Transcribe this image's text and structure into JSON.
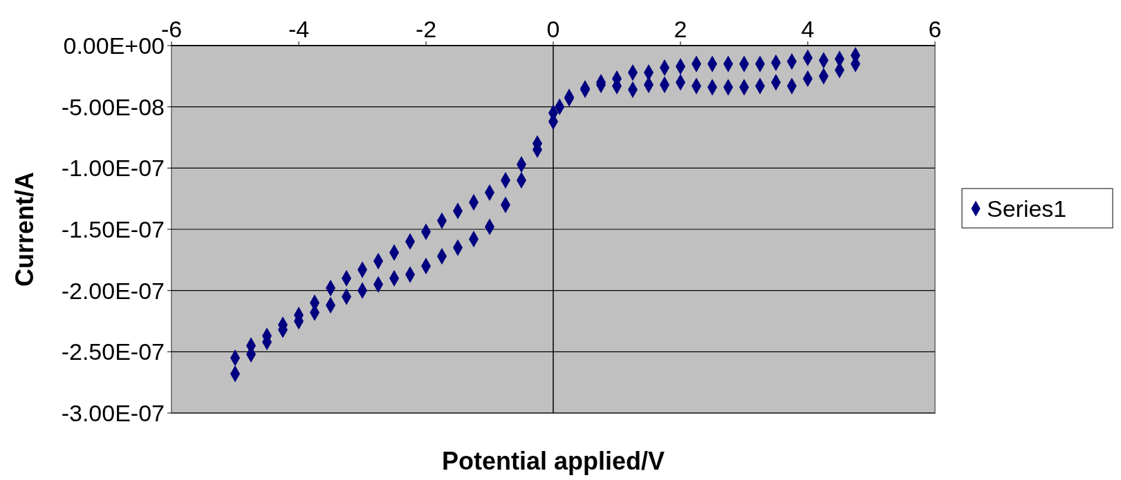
{
  "chart_data": {
    "type": "scatter",
    "xlabel": "Potential applied/V",
    "ylabel": "Current/A",
    "xlim": [
      -6,
      6
    ],
    "xticks": [
      -6,
      -4,
      -2,
      0,
      2,
      4,
      6
    ],
    "ylim": [
      -3e-07,
      0
    ],
    "yticks": [
      {
        "value": 0,
        "label": "0.00E+00"
      },
      {
        "value": -5e-08,
        "label": "-5.00E-08"
      },
      {
        "value": -1e-07,
        "label": "-1.00E-07"
      },
      {
        "value": -1.5e-07,
        "label": "-1.50E-07"
      },
      {
        "value": -2e-07,
        "label": "-2.00E-07"
      },
      {
        "value": -2.5e-07,
        "label": "-2.50E-07"
      },
      {
        "value": -3e-07,
        "label": "-3.00E-07"
      }
    ],
    "grid": "y",
    "legend": "right",
    "marker": "diamond",
    "series": [
      {
        "name": "Series1",
        "color": "#000080",
        "x": [
          -5,
          -4.75,
          -4.5,
          -4.25,
          -4,
          -3.75,
          -3.5,
          -3.25,
          -3,
          -2.75,
          -2.5,
          -2.25,
          -2,
          -1.75,
          -1.5,
          -1.25,
          -1,
          -0.75,
          -0.5,
          -0.25,
          0,
          0.1,
          0.25,
          0.5,
          0.75,
          1,
          1.25,
          1.5,
          1.75,
          2,
          2.25,
          2.5,
          2.75,
          3,
          3.25,
          3.5,
          3.75,
          4,
          4.25,
          4.5,
          4.75,
          4.75,
          4.5,
          4.25,
          4,
          3.75,
          3.5,
          3.25,
          3,
          2.75,
          2.5,
          2.25,
          2,
          1.75,
          1.5,
          1.25,
          1,
          0.75,
          0.5,
          0.25,
          0,
          -0.25,
          -0.5,
          -0.75,
          -1,
          -1.25,
          -1.5,
          -1.75,
          -2,
          -2.25,
          -2.5,
          -2.75,
          -3,
          -3.25,
          -3.5,
          -3.75,
          -4,
          -4.25,
          -4.5,
          -4.75,
          -5
        ],
        "values": [
          -2.55e-07,
          -2.45e-07,
          -2.37e-07,
          -2.28e-07,
          -2.2e-07,
          -2.1e-07,
          -1.98e-07,
          -1.9e-07,
          -1.83e-07,
          -1.76e-07,
          -1.69e-07,
          -1.6e-07,
          -1.52e-07,
          -1.43e-07,
          -1.35e-07,
          -1.28e-07,
          -1.2e-07,
          -1.1e-07,
          -9.7e-08,
          -8e-08,
          -6.2e-08,
          -5e-08,
          -4.3e-08,
          -3.5e-08,
          -3e-08,
          -2.7e-08,
          -2.2e-08,
          -2.2e-08,
          -1.8e-08,
          -1.7e-08,
          -1.5e-08,
          -1.5e-08,
          -1.5e-08,
          -1.5e-08,
          -1.5e-08,
          -1.4e-08,
          -1.3e-08,
          -1e-08,
          -1.2e-08,
          -1.1e-08,
          -8e-09,
          -1.5e-08,
          -2e-08,
          -2.5e-08,
          -2.7e-08,
          -3.3e-08,
          -3e-08,
          -3.3e-08,
          -3.4e-08,
          -3.4e-08,
          -3.4e-08,
          -3.3e-08,
          -3e-08,
          -3.2e-08,
          -3.2e-08,
          -3.6e-08,
          -3.3e-08,
          -3.2e-08,
          -3.6e-08,
          -4.2e-08,
          -5.5e-08,
          -8.5e-08,
          -1.1e-07,
          -1.3e-07,
          -1.48e-07,
          -1.58e-07,
          -1.65e-07,
          -1.72e-07,
          -1.8e-07,
          -1.87e-07,
          -1.9e-07,
          -1.95e-07,
          -2e-07,
          -2.05e-07,
          -2.12e-07,
          -2.18e-07,
          -2.25e-07,
          -2.32e-07,
          -2.42e-07,
          -2.52e-07,
          -2.68e-07
        ]
      }
    ]
  }
}
